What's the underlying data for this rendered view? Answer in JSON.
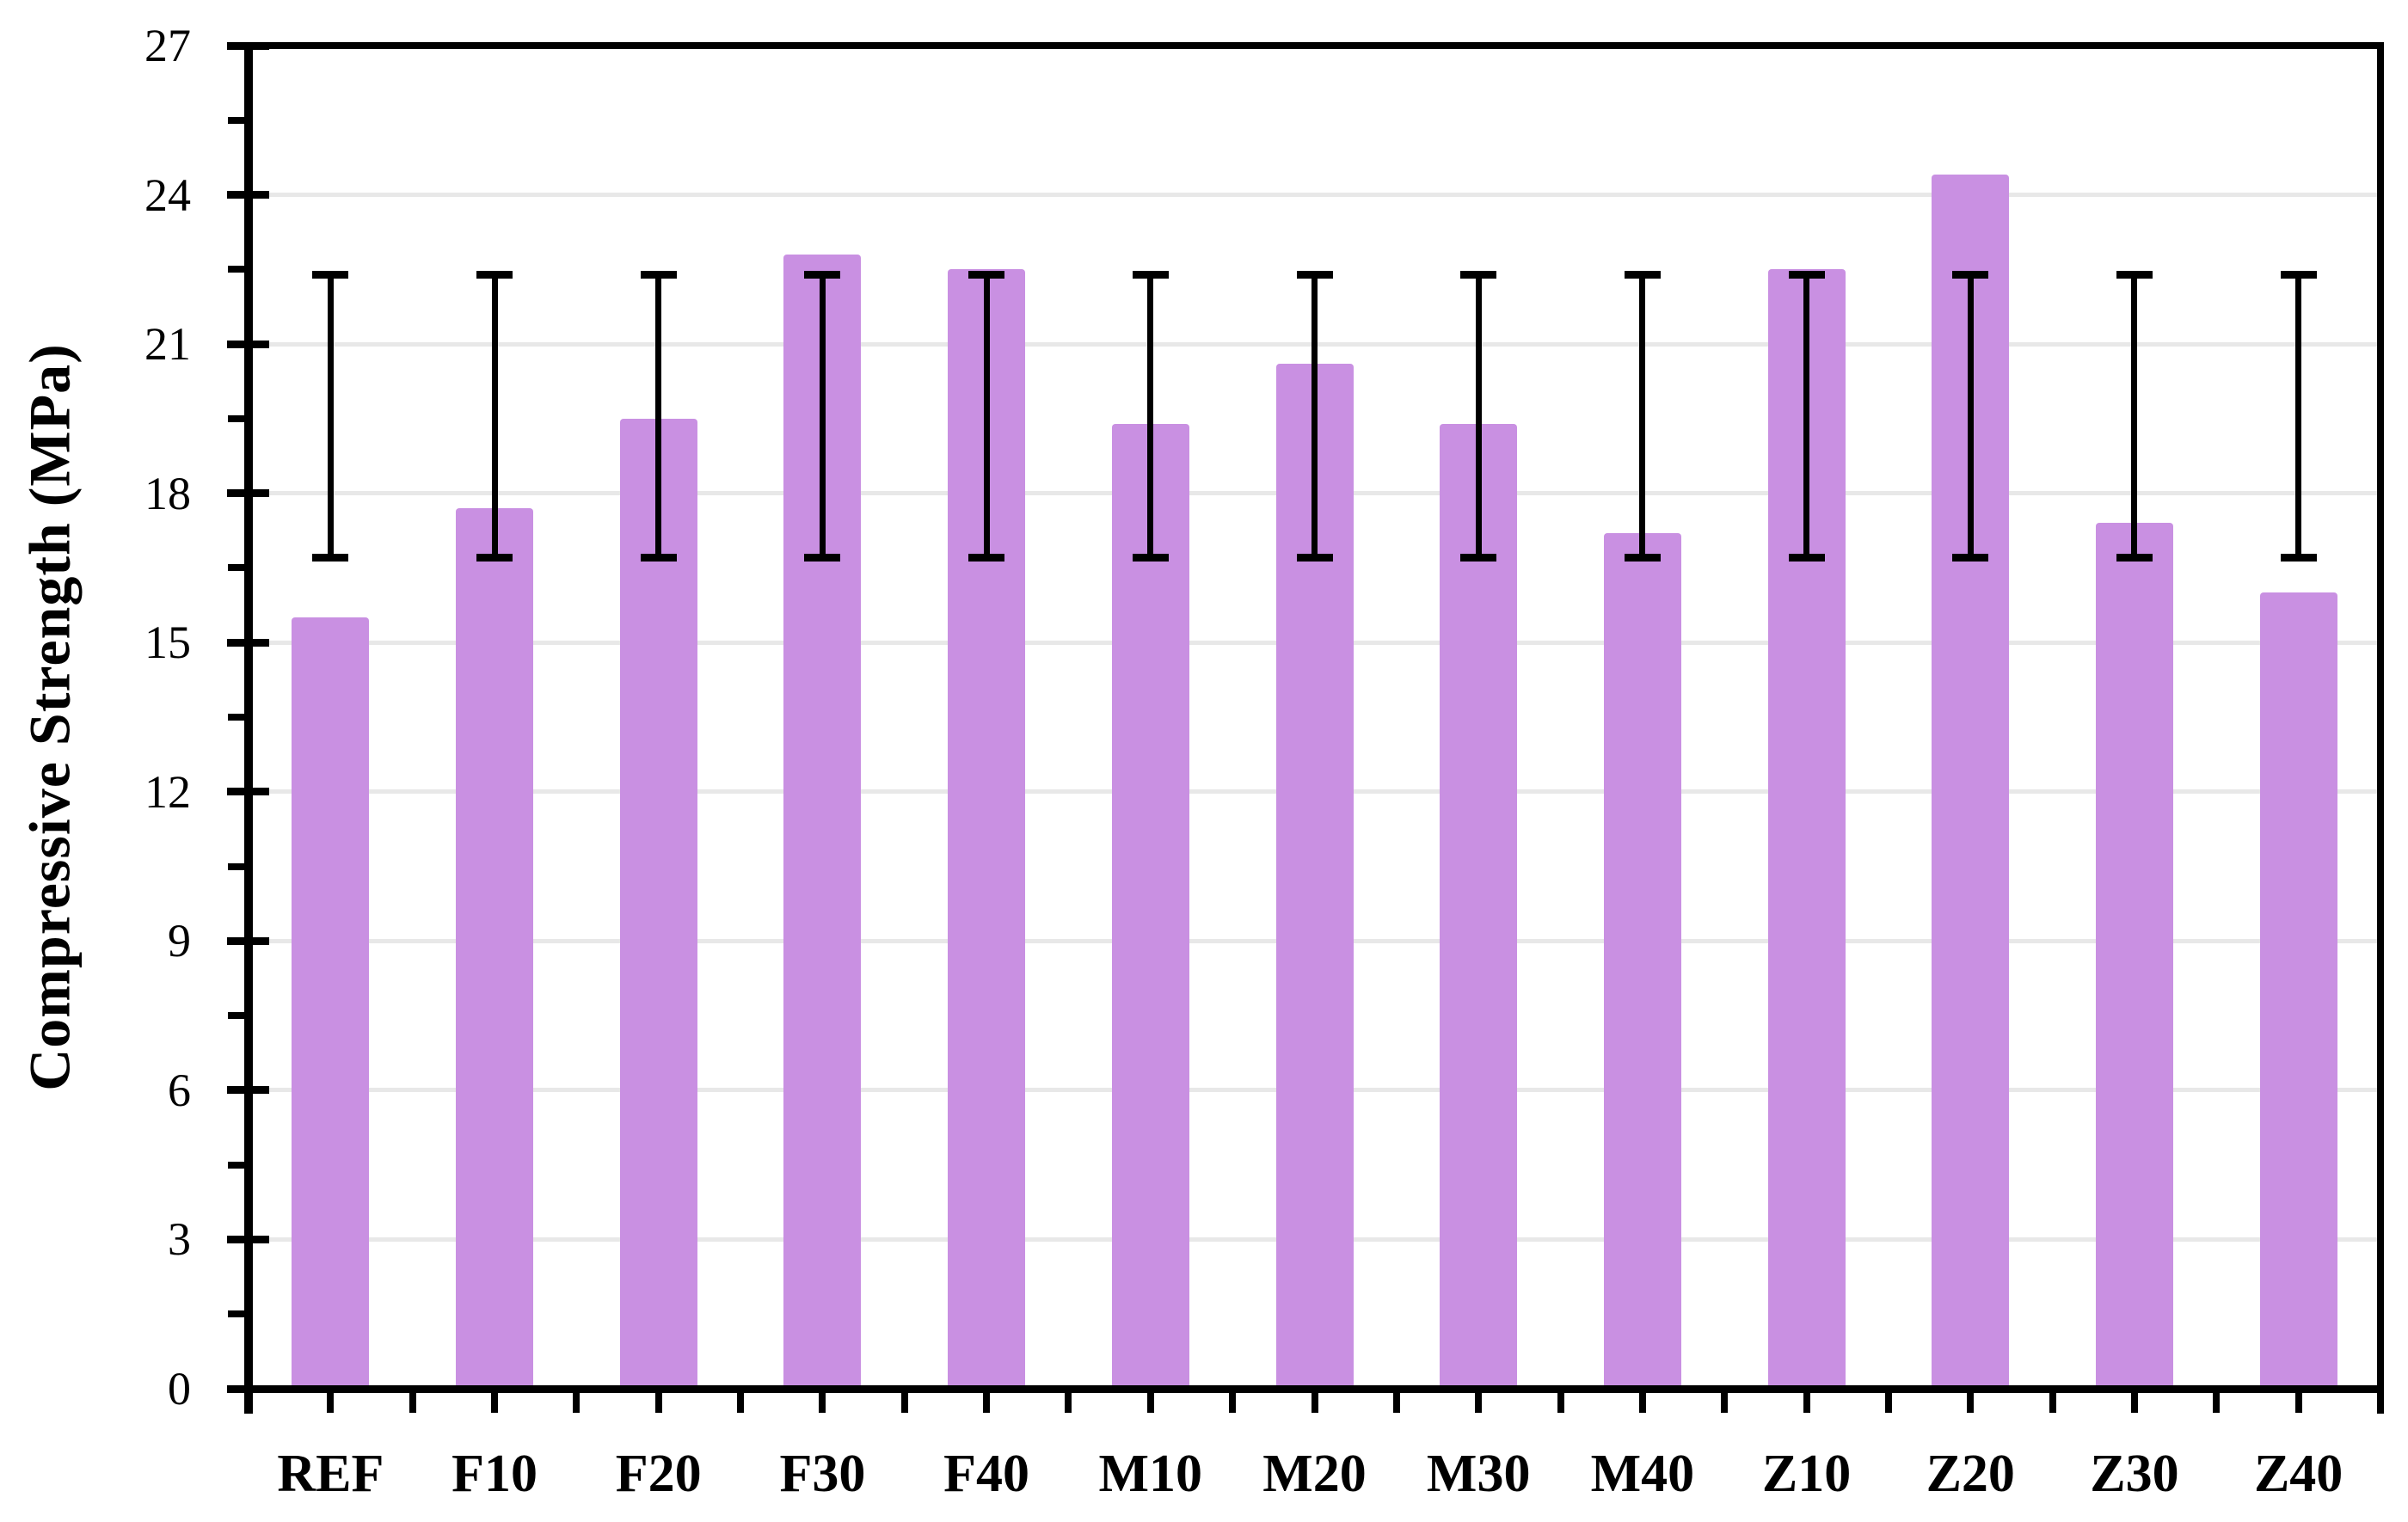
{
  "chart_data": {
    "type": "bar",
    "title": "",
    "xlabel": "",
    "ylabel": "Compressive Strength (MPa)",
    "categories": [
      "REF",
      "F10",
      "F20",
      "F30",
      "F40",
      "M10",
      "M20",
      "M30",
      "M40",
      "Z10",
      "Z20",
      "Z30",
      "Z40"
    ],
    "values": [
      15.5,
      17.7,
      19.5,
      22.8,
      22.5,
      19.4,
      20.6,
      19.4,
      17.2,
      22.5,
      24.4,
      17.4,
      16.0
    ],
    "error_bars": {
      "low": 16.7,
      "high": 22.4,
      "shown_on_every_bar": true
    },
    "ylim": [
      0,
      27
    ],
    "ytick_step": 3,
    "yticks": [
      0,
      3,
      6,
      9,
      12,
      15,
      18,
      21,
      24,
      27
    ],
    "yminor_step": 1.5,
    "grid": "horizontal major gridlines only",
    "legend": "none",
    "bar_color": "#C990E2",
    "gridline_color": "#E8E8E8",
    "axis_color": "#000000",
    "plot_border": "full box"
  }
}
